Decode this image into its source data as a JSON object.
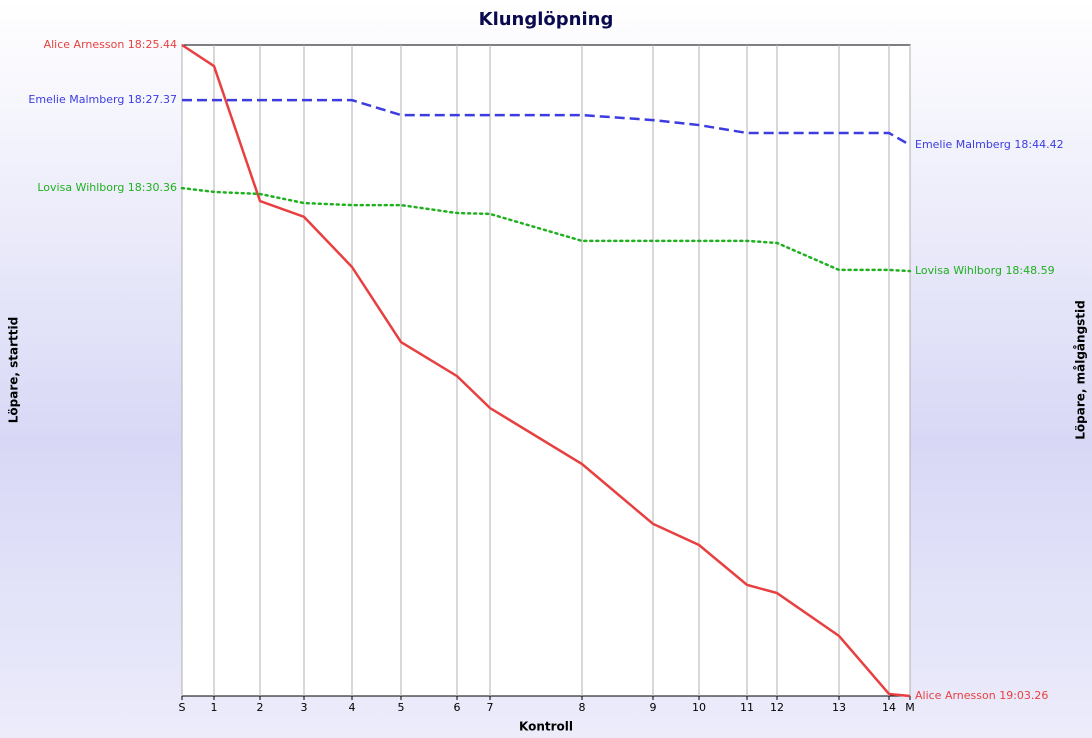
{
  "chart_data": {
    "type": "line",
    "title": "Klunglöpning",
    "x_label": "Kontroll",
    "y_label": "Löpare, starttid",
    "y2_label": "Löpare, målgångstid",
    "x": [
      0,
      32,
      78,
      122,
      170,
      219,
      275,
      308,
      400,
      471,
      517,
      565,
      595,
      657,
      707,
      728
    ],
    "xlim": [
      0,
      728
    ],
    "xticks": [
      {
        "value": 0,
        "label": "S"
      },
      {
        "value": 32,
        "label": "1"
      },
      {
        "value": 78,
        "label": "2"
      },
      {
        "value": 122,
        "label": "3"
      },
      {
        "value": 170,
        "label": "4"
      },
      {
        "value": 219,
        "label": "5"
      },
      {
        "value": 275,
        "label": "6"
      },
      {
        "value": 308,
        "label": "7"
      },
      {
        "value": 400,
        "label": "8"
      },
      {
        "value": 471,
        "label": "9"
      },
      {
        "value": 517,
        "label": "10"
      },
      {
        "value": 565,
        "label": "11"
      },
      {
        "value": 595,
        "label": "12"
      },
      {
        "value": 657,
        "label": "13"
      },
      {
        "value": 707,
        "label": "14"
      },
      {
        "value": 728,
        "label": "M"
      }
    ],
    "ylim": [
      22.2,
      0
    ],
    "grid": true,
    "series": [
      {
        "name": "Alice Arnesson",
        "color": "#e84040",
        "dash": "solid",
        "start_label": "Alice Arnesson 18:25.44",
        "end_label": "Alice Arnesson 19:03.26",
        "values": [
          0,
          0.72,
          5.32,
          5.86,
          7.57,
          10.13,
          11.29,
          12.38,
          14.29,
          16.33,
          17.05,
          18.41,
          18.69,
          20.15,
          22.13,
          22.2
        ]
      },
      {
        "name": "Emelie Malmberg",
        "color": "#3c3ce0",
        "dash": "dashed",
        "start_label": "Emelie Malmberg 18:27.37",
        "end_label": "Emelie Malmberg 18:44.42",
        "values": [
          1.88,
          1.88,
          1.88,
          1.88,
          1.88,
          2.39,
          2.39,
          2.39,
          2.39,
          2.56,
          2.73,
          3.0,
          3.0,
          3.0,
          3.0,
          3.41
        ]
      },
      {
        "name": "Lovisa Wihlborg",
        "color": "#20b020",
        "dash": "dotted",
        "start_label": "Lovisa Wihlborg 18:30.36",
        "end_label": "Lovisa Wihlborg 18:48.59",
        "values": [
          4.88,
          5.01,
          5.08,
          5.39,
          5.46,
          5.46,
          5.73,
          5.76,
          6.68,
          6.68,
          6.68,
          6.68,
          6.75,
          7.67,
          7.67,
          7.71
        ]
      }
    ]
  }
}
